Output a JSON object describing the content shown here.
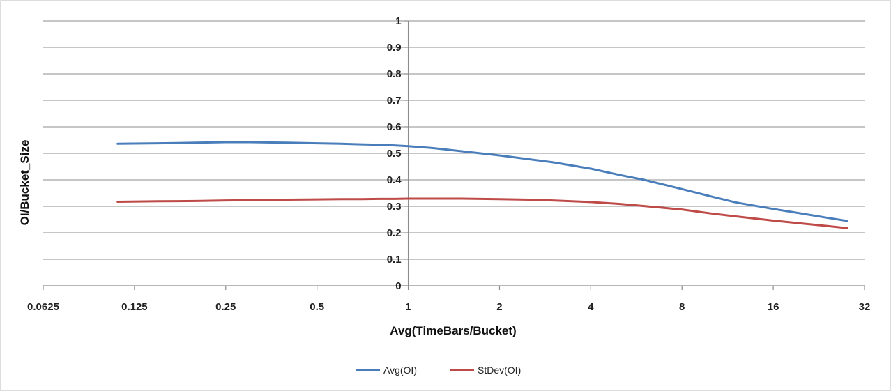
{
  "chart_data": {
    "type": "line",
    "xlabel": "Avg(TimeBars/Bucket)",
    "ylabel": "OI/Bucket_Size",
    "x_scale": "log2",
    "xlim": [
      0.0625,
      32
    ],
    "ylim": [
      0,
      1
    ],
    "x_ticks": [
      "0.0625",
      "0.125",
      "0.25",
      "0.5",
      "1",
      "2",
      "4",
      "8",
      "16",
      "32"
    ],
    "y_ticks": [
      "0",
      "0.1",
      "0.2",
      "0.3",
      "0.4",
      "0.5",
      "0.6",
      "0.7",
      "0.8",
      "0.9",
      "1"
    ],
    "grid": "horizontal",
    "y_axis_crosses_x_at": 1,
    "legend": "bottom",
    "series": [
      {
        "name": "Avg(OI)",
        "color": "#4a7ebb",
        "x": [
          0.11,
          0.15,
          0.2,
          0.25,
          0.3,
          0.4,
          0.5,
          0.6,
          0.7,
          0.8,
          0.9,
          1,
          1.2,
          1.5,
          2,
          2.5,
          3,
          4,
          5,
          6,
          8,
          10,
          12,
          16,
          20,
          24,
          28
        ],
        "y": [
          0.536,
          0.538,
          0.54,
          0.542,
          0.542,
          0.54,
          0.538,
          0.536,
          0.534,
          0.532,
          0.53,
          0.527,
          0.52,
          0.508,
          0.492,
          0.478,
          0.466,
          0.442,
          0.418,
          0.4,
          0.365,
          0.337,
          0.315,
          0.29,
          0.272,
          0.257,
          0.245
        ]
      },
      {
        "name": "StDev(OI)",
        "color": "#be4b48",
        "x": [
          0.11,
          0.15,
          0.2,
          0.25,
          0.3,
          0.4,
          0.5,
          0.6,
          0.7,
          0.8,
          0.9,
          1,
          1.2,
          1.5,
          2,
          2.5,
          3,
          4,
          5,
          6,
          8,
          10,
          12,
          16,
          20,
          24,
          28
        ],
        "y": [
          0.317,
          0.319,
          0.32,
          0.322,
          0.323,
          0.325,
          0.326,
          0.327,
          0.327,
          0.328,
          0.328,
          0.329,
          0.329,
          0.329,
          0.327,
          0.325,
          0.322,
          0.316,
          0.309,
          0.301,
          0.288,
          0.273,
          0.262,
          0.246,
          0.235,
          0.226,
          0.218
        ]
      }
    ]
  }
}
